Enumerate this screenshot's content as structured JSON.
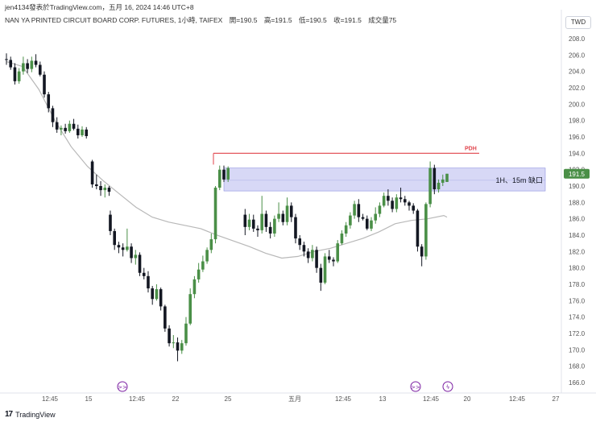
{
  "header": {
    "author_line": "jen4134發表於TradingView.com，五月 16, 2024 14:46 UTC+8"
  },
  "legend": {
    "symbol": "NAN YA PRINTED CIRCUIT BOARD CORP. FUTURES, 1小時, TAIFEX",
    "open": "開=190.5",
    "high": "高=191.5",
    "low": "低=190.5",
    "close": "收=191.5",
    "volume": "成交量75"
  },
  "currency_button": "TWD",
  "footer": {
    "brand": "TradingView"
  },
  "colors": {
    "up": "#4a8f47",
    "down": "#131722",
    "ma": "#b8b8b8",
    "pdh": "#e0424a",
    "zone": "#c9cbf3",
    "price_badge": "#4a8f47"
  },
  "chart_data": {
    "type": "candlestick",
    "y_axis": {
      "min": 166,
      "max": 208,
      "ticks": [
        166,
        168,
        170,
        172,
        174,
        176,
        178,
        180,
        182,
        184,
        186,
        188,
        190,
        192,
        194,
        196,
        198,
        200,
        202,
        204,
        206,
        208
      ]
    },
    "x_tick_labels": [
      "12:45",
      "15",
      "12:45",
      "22",
      "25",
      "五月",
      "12:45",
      "13",
      "12:45",
      "20",
      "12:45",
      "27"
    ],
    "candles": [
      [
        205.5,
        206.2,
        204.8,
        205.4
      ],
      [
        205.4,
        205.8,
        204.2,
        204.5
      ],
      [
        204.5,
        205.0,
        202.4,
        202.8
      ],
      [
        202.8,
        204.4,
        202.5,
        204.0
      ],
      [
        204.0,
        205.8,
        203.6,
        205.0
      ],
      [
        205.0,
        205.5,
        203.8,
        204.3
      ],
      [
        204.3,
        205.8,
        203.9,
        205.3
      ],
      [
        205.3,
        206.1,
        204.5,
        204.8
      ],
      [
        204.8,
        205.2,
        203.4,
        203.6
      ],
      [
        203.6,
        204.0,
        200.8,
        201.2
      ],
      [
        201.2,
        201.5,
        199.0,
        199.5
      ],
      [
        199.5,
        199.8,
        197.2,
        197.8
      ],
      [
        197.8,
        198.4,
        196.5,
        196.9
      ],
      [
        196.9,
        197.4,
        196.2,
        197.1
      ],
      [
        197.1,
        197.6,
        196.4,
        196.7
      ],
      [
        196.7,
        198.0,
        196.5,
        197.6
      ],
      [
        197.6,
        198.2,
        196.8,
        197.0
      ],
      [
        197.0,
        197.5,
        195.8,
        196.2
      ],
      [
        196.2,
        197.3,
        196.0,
        196.9
      ],
      [
        196.9,
        197.2,
        195.8,
        196.1
      ],
      [
        193.0,
        193.2,
        189.8,
        190.2
      ],
      [
        190.2,
        191.4,
        189.6,
        190.0
      ],
      [
        190.0,
        190.6,
        188.8,
        189.5
      ],
      [
        189.5,
        190.2,
        188.6,
        189.8
      ],
      [
        189.8,
        190.0,
        188.8,
        189.3
      ],
      [
        186.5,
        187.0,
        184.0,
        184.5
      ],
      [
        184.5,
        184.8,
        182.2,
        182.8
      ],
      [
        182.8,
        183.2,
        181.8,
        182.5
      ],
      [
        182.5,
        183.0,
        181.4,
        182.2
      ],
      [
        182.2,
        184.8,
        182.0,
        182.6
      ],
      [
        182.6,
        183.0,
        180.6,
        181.2
      ],
      [
        181.2,
        182.2,
        180.4,
        181.6
      ],
      [
        181.6,
        181.9,
        179.0,
        179.4
      ],
      [
        179.4,
        180.0,
        178.6,
        179.0
      ],
      [
        179.0,
        179.6,
        177.0,
        177.5
      ],
      [
        177.5,
        177.8,
        175.5,
        176.2
      ],
      [
        176.2,
        178.0,
        176.0,
        177.4
      ],
      [
        177.4,
        177.6,
        174.8,
        175.3
      ],
      [
        175.3,
        175.5,
        172.2,
        172.6
      ],
      [
        172.6,
        173.0,
        170.4,
        170.8
      ],
      [
        170.8,
        171.8,
        170.2,
        170.9
      ],
      [
        170.9,
        171.5,
        168.6,
        169.9
      ],
      [
        169.9,
        171.2,
        169.5,
        170.8
      ],
      [
        170.8,
        174.0,
        170.5,
        173.2
      ],
      [
        173.2,
        177.5,
        173.0,
        176.8
      ],
      [
        176.8,
        179.0,
        176.3,
        178.6
      ],
      [
        178.6,
        180.6,
        178.2,
        179.8
      ],
      [
        179.8,
        181.5,
        179.5,
        180.8
      ],
      [
        180.8,
        182.5,
        180.5,
        182.2
      ],
      [
        182.2,
        184.2,
        181.8,
        183.5
      ],
      [
        183.5,
        190.0,
        183.0,
        189.8
      ],
      [
        189.8,
        192.5,
        189.5,
        192.0
      ],
      [
        192.0,
        192.5,
        190.5,
        190.8
      ],
      [
        190.8,
        192.4,
        190.5,
        192.2
      ],
      [
        186.5,
        187.2,
        184.0,
        185.0
      ],
      [
        185.0,
        186.6,
        184.6,
        185.9
      ],
      [
        185.9,
        186.5,
        184.4,
        184.8
      ],
      [
        184.8,
        185.2,
        183.8,
        184.6
      ],
      [
        184.6,
        188.8,
        184.2,
        186.6
      ],
      [
        186.6,
        187.0,
        184.4,
        185.0
      ],
      [
        185.0,
        185.6,
        183.6,
        184.2
      ],
      [
        184.2,
        186.4,
        183.8,
        186.0
      ],
      [
        186.0,
        188.0,
        185.6,
        186.6
      ],
      [
        186.6,
        187.0,
        185.2,
        185.6
      ],
      [
        185.6,
        188.6,
        185.2,
        187.6
      ],
      [
        187.6,
        188.0,
        185.6,
        186.2
      ],
      [
        186.2,
        186.6,
        183.0,
        183.6
      ],
      [
        183.6,
        184.0,
        182.2,
        182.8
      ],
      [
        182.8,
        183.2,
        181.4,
        182.0
      ],
      [
        182.0,
        182.4,
        180.6,
        181.2
      ],
      [
        181.2,
        182.8,
        180.8,
        182.2
      ],
      [
        182.2,
        182.6,
        179.4,
        180.0
      ],
      [
        180.0,
        180.5,
        177.2,
        178.2
      ],
      [
        178.2,
        181.8,
        178.0,
        181.4
      ],
      [
        181.4,
        182.2,
        180.6,
        181.0
      ],
      [
        181.0,
        181.3,
        180.2,
        180.8
      ],
      [
        180.8,
        183.4,
        180.6,
        183.0
      ],
      [
        183.0,
        184.6,
        182.8,
        184.2
      ],
      [
        184.2,
        185.6,
        183.8,
        185.2
      ],
      [
        185.2,
        186.8,
        184.8,
        186.4
      ],
      [
        186.4,
        188.2,
        186.0,
        187.8
      ],
      [
        187.8,
        188.4,
        185.6,
        186.2
      ],
      [
        186.2,
        186.6,
        185.8,
        186.0
      ],
      [
        186.0,
        186.4,
        184.6,
        184.8
      ],
      [
        184.8,
        186.2,
        184.5,
        185.8
      ],
      [
        185.8,
        187.4,
        185.4,
        186.6
      ],
      [
        186.6,
        188.0,
        186.2,
        187.6
      ],
      [
        187.6,
        189.2,
        187.4,
        188.8
      ],
      [
        188.8,
        189.6,
        187.6,
        188.2
      ],
      [
        188.2,
        188.6,
        186.8,
        187.2
      ],
      [
        187.2,
        189.0,
        186.8,
        188.6
      ],
      [
        188.6,
        189.8,
        188.0,
        188.4
      ],
      [
        188.4,
        188.8,
        187.6,
        188.0
      ],
      [
        188.0,
        188.2,
        187.0,
        187.6
      ],
      [
        187.6,
        187.9,
        186.6,
        187.0
      ],
      [
        187.0,
        187.2,
        182.0,
        182.6
      ],
      [
        182.6,
        182.9,
        180.2,
        181.4
      ],
      [
        181.4,
        188.0,
        181.0,
        187.8
      ],
      [
        187.8,
        193.0,
        187.4,
        192.2
      ],
      [
        192.2,
        192.6,
        189.0,
        189.6
      ],
      [
        189.6,
        190.8,
        189.2,
        190.4
      ],
      [
        190.4,
        191.4,
        190.0,
        190.8
      ],
      [
        190.5,
        191.5,
        190.5,
        191.5
      ]
    ],
    "moving_average": [
      [
        0,
        205.2
      ],
      [
        10,
        204.6
      ],
      [
        20,
        201.8
      ],
      [
        30,
        198.0
      ],
      [
        40,
        194.8
      ],
      [
        50,
        192.4
      ],
      [
        60,
        190.6
      ],
      [
        70,
        189.0
      ],
      [
        80,
        187.4
      ],
      [
        90,
        186.2
      ],
      [
        100,
        185.6
      ],
      [
        110,
        185.2
      ],
      [
        120,
        184.8
      ],
      [
        130,
        184.0
      ],
      [
        140,
        183.3
      ],
      [
        150,
        182.6
      ],
      [
        160,
        181.8
      ],
      [
        170,
        181.2
      ],
      [
        180,
        181.4
      ],
      [
        190,
        182.0
      ],
      [
        200,
        182.4
      ],
      [
        210,
        183.0
      ],
      [
        220,
        183.6
      ],
      [
        230,
        184.4
      ],
      [
        240,
        185.4
      ],
      [
        250,
        185.8
      ],
      [
        260,
        186.0
      ],
      [
        270,
        186.4
      ],
      [
        272,
        186.2
      ]
    ],
    "ma_note_x": "values above are [minute-index offset, price] pairs, indexing into candle timeline in units of candle index ×5/2",
    "levels": [
      {
        "name": "PDH",
        "price": 194.0,
        "label": "PDH"
      }
    ],
    "zone": {
      "top": 192.2,
      "bottom": 189.4,
      "label": "1H、15m 缺口"
    },
    "last_price": "191.5"
  }
}
